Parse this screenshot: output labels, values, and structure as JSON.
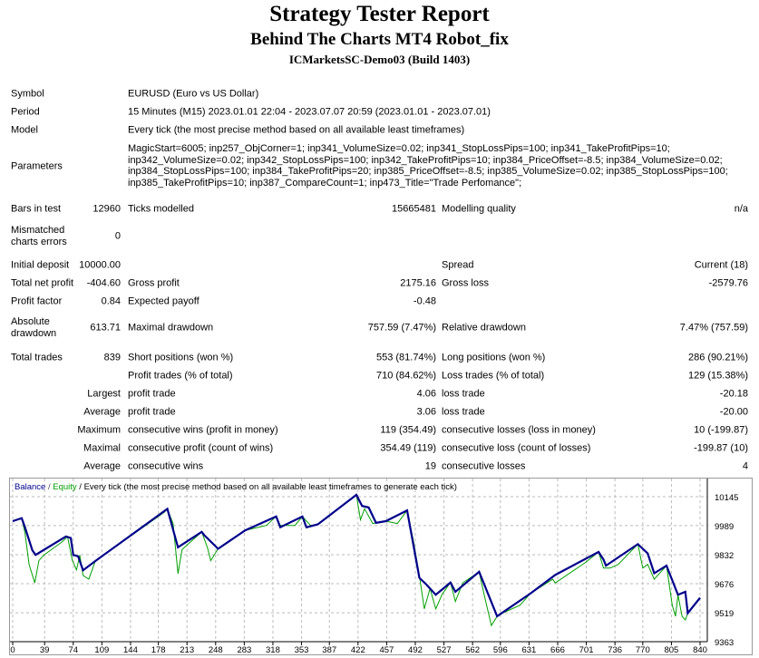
{
  "header": {
    "title": "Strategy Tester Report",
    "subtitle": "Behind The Charts MT4 Robot_fix",
    "server": "ICMarketsSC-Demo03 (Build 1403)"
  },
  "info": {
    "symbol_label": "Symbol",
    "symbol": "EURUSD (Euro vs US Dollar)",
    "period_label": "Period",
    "period": "15 Minutes (M15) 2023.01.01 22:04 - 2023.07.07 20:59 (2023.01.01 - 2023.07.01)",
    "model_label": "Model",
    "model": "Every tick (the most precise method based on all available least timeframes)",
    "parameters_label": "Parameters",
    "parameters": [
      "MagicStart=6005; inp257_ObjCorner=1; inp341_VolumeSize=0.02; inp341_StopLossPips=100; inp341_TakeProfitPips=10;",
      "inp342_VolumeSize=0.02; inp342_StopLossPips=100; inp342_TakeProfitPips=10; inp384_PriceOffset=-8.5; inp384_VolumeSize=0.02;",
      "inp384_StopLossPips=100; inp384_TakeProfitPips=20; inp385_PriceOffset=-8.5; inp385_VolumeSize=0.02; inp385_StopLossPips=100;",
      "inp385_TakeProfitPips=10; inp387_CompareCount=1; inp473_Title=\"Trade Perfomance\";"
    ]
  },
  "stats": [
    [
      "Bars in test",
      "12960",
      "Ticks modelled",
      "15665481",
      "Modelling quality",
      "n/a"
    ],
    [
      "Mismatched charts errors",
      "0",
      "",
      "",
      "",
      ""
    ],
    [
      "Initial deposit",
      "10000.00",
      "",
      "",
      "Spread",
      "Current (18)"
    ],
    [
      "Total net profit",
      "-404.60",
      "Gross profit",
      "2175.16",
      "Gross loss",
      "-2579.76"
    ],
    [
      "Profit factor",
      "0.84",
      "Expected payoff",
      "-0.48",
      "",
      ""
    ],
    [
      "Absolute drawdown",
      "613.71",
      "Maximal drawdown",
      "757.59 (7.47%)",
      "Relative drawdown",
      "7.47% (757.59)"
    ],
    [
      "Total trades",
      "839",
      "Short positions (won %)",
      "553 (81.74%)",
      "Long positions (won %)",
      "286 (90.21%)"
    ],
    [
      "",
      "",
      "Profit trades (% of total)",
      "710 (84.62%)",
      "Loss trades (% of total)",
      "129 (15.38%)"
    ],
    [
      "",
      "Largest",
      "profit trade",
      "4.06",
      "loss trade",
      "-20.18"
    ],
    [
      "",
      "Average",
      "profit trade",
      "3.06",
      "loss trade",
      "-20.00"
    ],
    [
      "",
      "Maximum",
      "consecutive wins (profit in money)",
      "119 (354.49)",
      "consecutive losses (loss in money)",
      "10 (-199.87)"
    ],
    [
      "",
      "Maximal",
      "consecutive profit (count of wins)",
      "354.49 (119)",
      "consecutive loss (count of losses)",
      "-199.87 (10)"
    ],
    [
      "",
      "Average",
      "consecutive wins",
      "19",
      "consecutive losses",
      "4"
    ]
  ],
  "chart_data": {
    "type": "line",
    "legend": {
      "balance": "Balance",
      "sep1": " / ",
      "equity": "Equity",
      "desc": " / Every tick (the most precise method based on all available least timeframes to generate each tick)"
    },
    "x_ticks": [
      0,
      39,
      74,
      109,
      144,
      178,
      213,
      248,
      283,
      318,
      353,
      387,
      422,
      457,
      492,
      527,
      562,
      596,
      631,
      666,
      701,
      736,
      770,
      805,
      840
    ],
    "y_ticks": [
      10145,
      9989,
      9832,
      9676,
      9519,
      9363
    ],
    "xlim": [
      0,
      840
    ],
    "ylim": [
      9363,
      10145
    ],
    "grid": true,
    "colors": {
      "balance": "#00008b",
      "equity": "#00a000"
    },
    "series": [
      {
        "name": "Balance",
        "points": [
          [
            0,
            10013
          ],
          [
            11,
            10029
          ],
          [
            15,
            9980
          ],
          [
            24,
            9856
          ],
          [
            28,
            9831
          ],
          [
            65,
            9930
          ],
          [
            71,
            9922
          ],
          [
            74,
            9831
          ],
          [
            80,
            9823
          ],
          [
            86,
            9748
          ],
          [
            101,
            9798
          ],
          [
            189,
            10079
          ],
          [
            202,
            9872
          ],
          [
            231,
            9955
          ],
          [
            234,
            9938
          ],
          [
            251,
            9864
          ],
          [
            284,
            9963
          ],
          [
            322,
            10038
          ],
          [
            327,
            9980
          ],
          [
            354,
            10038
          ],
          [
            359,
            9980
          ],
          [
            373,
            9996
          ],
          [
            420,
            10155
          ],
          [
            427,
            10095
          ],
          [
            435,
            10087
          ],
          [
            444,
            10004
          ],
          [
            456,
            10013
          ],
          [
            482,
            10071
          ],
          [
            497,
            9707
          ],
          [
            505,
            9674
          ],
          [
            517,
            9616
          ],
          [
            535,
            9682
          ],
          [
            541,
            9632
          ],
          [
            570,
            9740
          ],
          [
            592,
            9500
          ],
          [
            633,
            9624
          ],
          [
            663,
            9723
          ],
          [
            716,
            9847
          ],
          [
            722,
            9806
          ],
          [
            725,
            9773
          ],
          [
            764,
            9889
          ],
          [
            776,
            9839
          ],
          [
            784,
            9732
          ],
          [
            799,
            9773
          ],
          [
            813,
            9616
          ],
          [
            822,
            9632
          ],
          [
            825,
            9517
          ],
          [
            840,
            9600
          ]
        ]
      },
      {
        "name": "Equity",
        "points": [
          [
            0,
            10013
          ],
          [
            11,
            10029
          ],
          [
            15,
            9950
          ],
          [
            20,
            9780
          ],
          [
            27,
            9680
          ],
          [
            32,
            9800
          ],
          [
            38,
            9830
          ],
          [
            60,
            9900
          ],
          [
            67,
            9930
          ],
          [
            73,
            9800
          ],
          [
            78,
            9750
          ],
          [
            82,
            9830
          ],
          [
            86,
            9720
          ],
          [
            93,
            9700
          ],
          [
            101,
            9798
          ],
          [
            185,
            10060
          ],
          [
            189,
            10079
          ],
          [
            196,
            10000
          ],
          [
            202,
            9730
          ],
          [
            207,
            9860
          ],
          [
            231,
            9955
          ],
          [
            238,
            9870
          ],
          [
            242,
            9800
          ],
          [
            251,
            9864
          ],
          [
            284,
            9963
          ],
          [
            310,
            9990
          ],
          [
            322,
            10038
          ],
          [
            327,
            9990
          ],
          [
            345,
            9990
          ],
          [
            354,
            10038
          ],
          [
            364,
            9990
          ],
          [
            373,
            9996
          ],
          [
            420,
            10155
          ],
          [
            425,
            10020
          ],
          [
            430,
            10080
          ],
          [
            440,
            10000
          ],
          [
            456,
            10013
          ],
          [
            470,
            10000
          ],
          [
            482,
            10071
          ],
          [
            490,
            9900
          ],
          [
            497,
            9720
          ],
          [
            503,
            9540
          ],
          [
            510,
            9650
          ],
          [
            517,
            9540
          ],
          [
            525,
            9620
          ],
          [
            535,
            9682
          ],
          [
            541,
            9580
          ],
          [
            550,
            9680
          ],
          [
            570,
            9740
          ],
          [
            577,
            9600
          ],
          [
            585,
            9450
          ],
          [
            592,
            9500
          ],
          [
            600,
            9520
          ],
          [
            620,
            9560
          ],
          [
            633,
            9624
          ],
          [
            660,
            9700
          ],
          [
            663,
            9680
          ],
          [
            700,
            9790
          ],
          [
            716,
            9847
          ],
          [
            722,
            9760
          ],
          [
            730,
            9760
          ],
          [
            740,
            9780
          ],
          [
            764,
            9889
          ],
          [
            770,
            9760
          ],
          [
            776,
            9780
          ],
          [
            784,
            9700
          ],
          [
            799,
            9773
          ],
          [
            806,
            9560
          ],
          [
            810,
            9500
          ],
          [
            813,
            9616
          ],
          [
            818,
            9500
          ],
          [
            822,
            9480
          ],
          [
            825,
            9517
          ],
          [
            840,
            9600
          ]
        ]
      }
    ]
  }
}
